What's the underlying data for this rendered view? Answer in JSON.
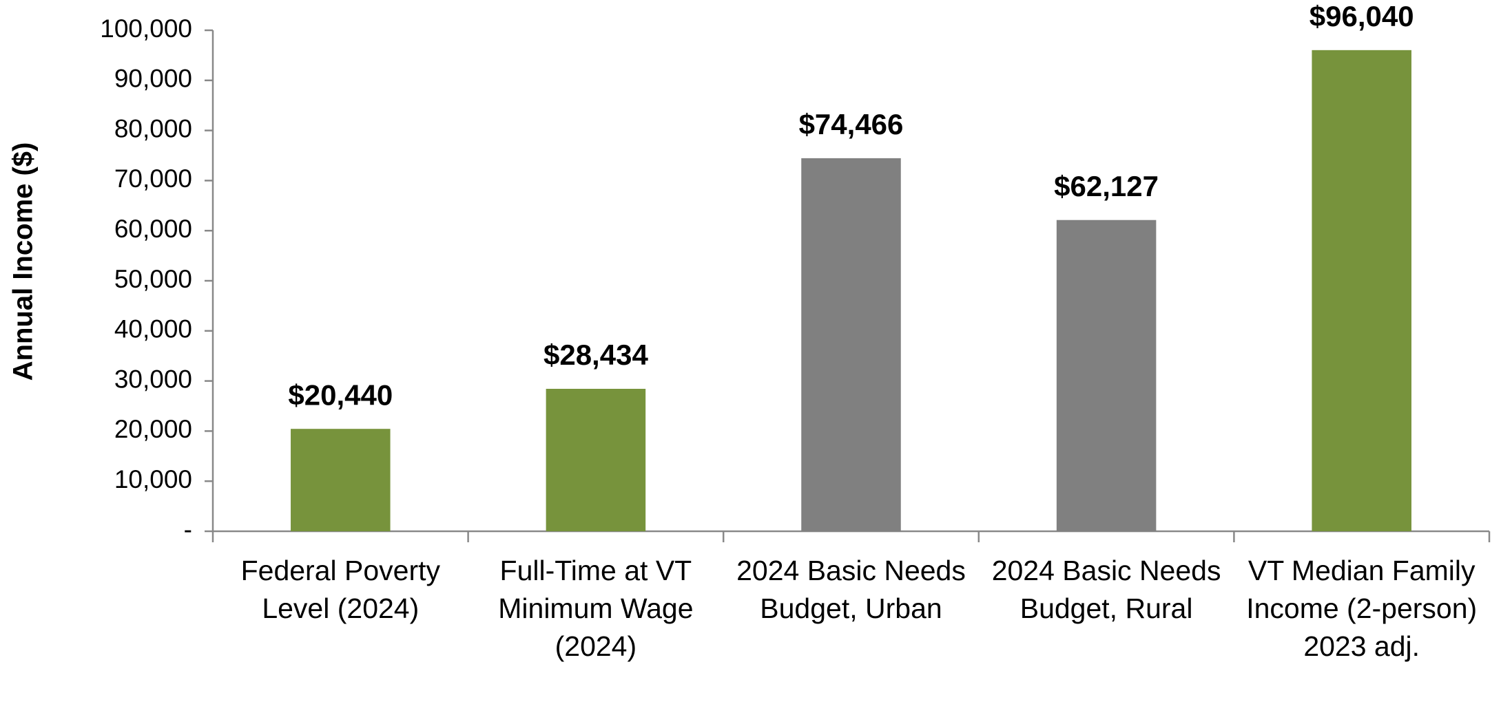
{
  "chart_data": {
    "type": "bar",
    "y_label": "Annual Income ($)",
    "categories": [
      "Federal Poverty Level (2024)",
      "Full-Time at VT Minimum Wage (2024)",
      "2024 Basic Needs Budget, Urban",
      "2024 Basic Needs Budget, Rural",
      "VT Median Family Income (2-person) 2023 adj."
    ],
    "values": [
      20440,
      28434,
      74466,
      62127,
      96040
    ],
    "value_labels": [
      "$20,440",
      "$28,434",
      "$74,466",
      "$62,127",
      "$96,040"
    ],
    "colors": [
      "#77933c",
      "#77933c",
      "#808080",
      "#808080",
      "#77933c"
    ],
    "ylim": [
      0,
      100000
    ],
    "yticks": [
      {
        "value": 0,
        "label": "-"
      },
      {
        "value": 10000,
        "label": "10,000"
      },
      {
        "value": 20000,
        "label": "20,000"
      },
      {
        "value": 30000,
        "label": "30,000"
      },
      {
        "value": 40000,
        "label": "40,000"
      },
      {
        "value": 50000,
        "label": "50,000"
      },
      {
        "value": 60000,
        "label": "60,000"
      },
      {
        "value": 70000,
        "label": "70,000"
      },
      {
        "value": 80000,
        "label": "80,000"
      },
      {
        "value": 90000,
        "label": "90,000"
      },
      {
        "value": 100000,
        "label": "100,000"
      }
    ],
    "grid": false
  }
}
